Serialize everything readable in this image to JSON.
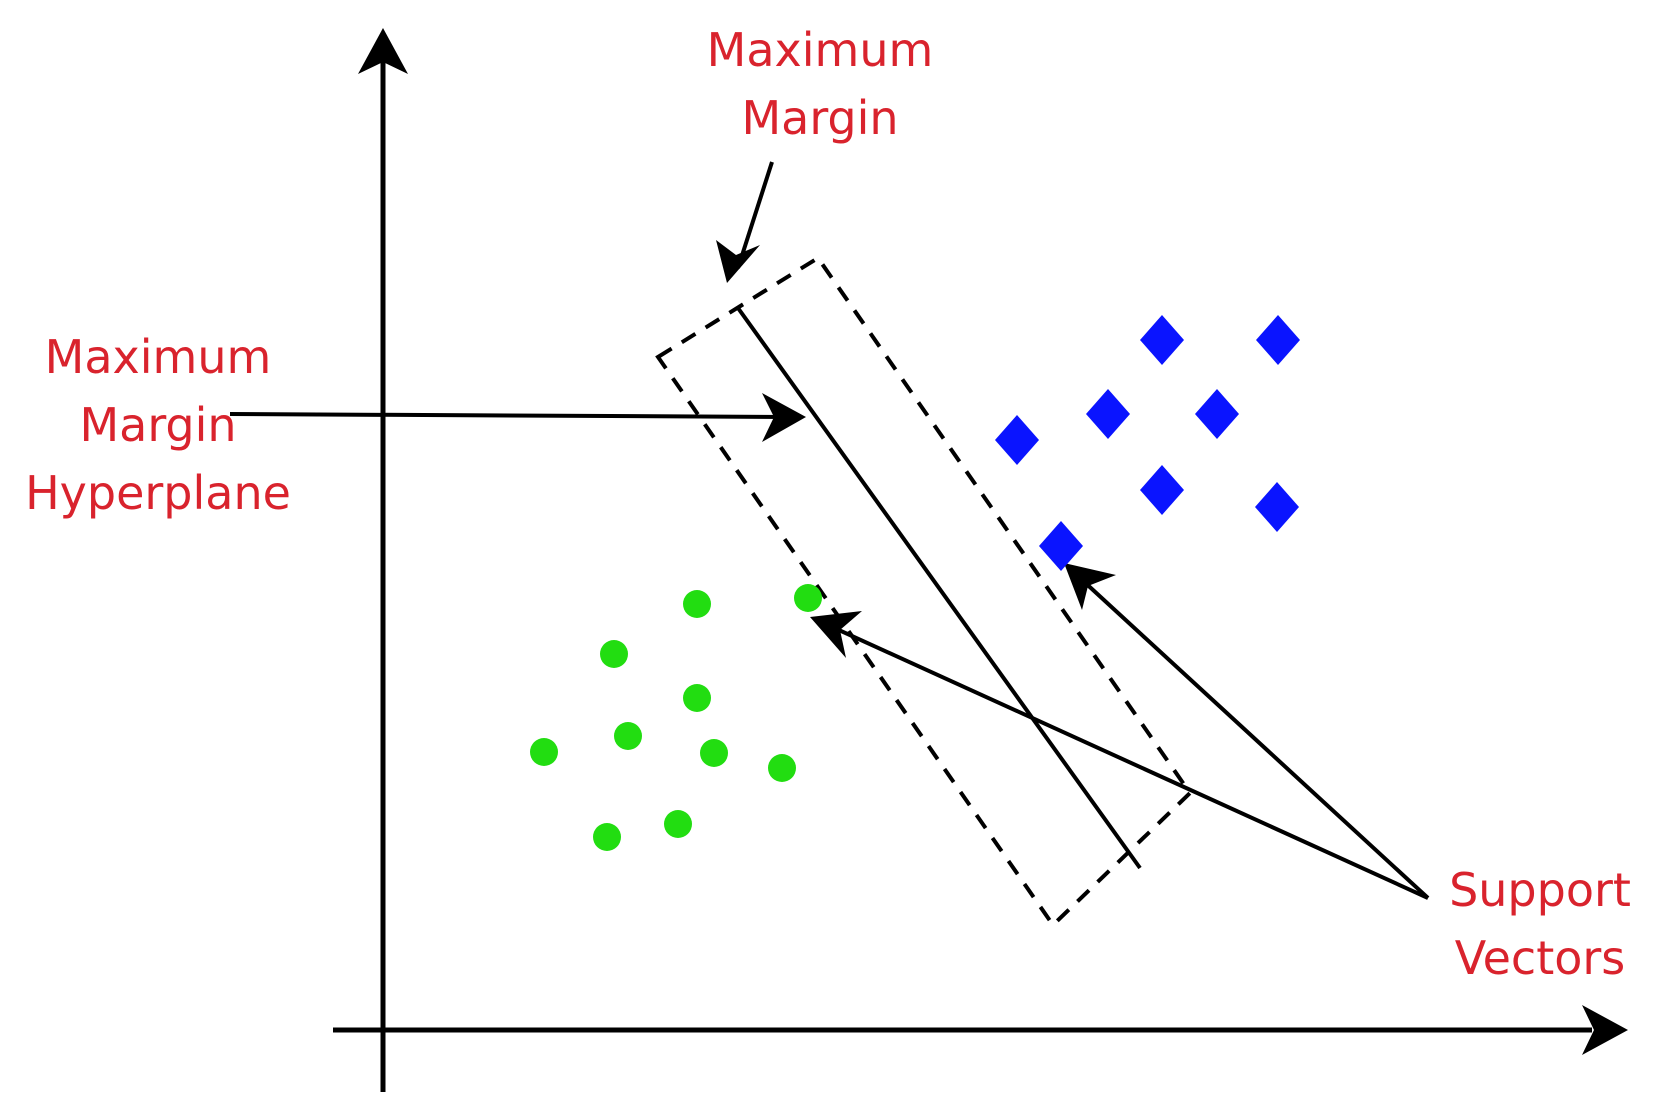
{
  "labels": {
    "top": {
      "line1": "Maximum",
      "line2": "Margin"
    },
    "left": {
      "line1": "Maximum",
      "line2": "Margin",
      "line3": "Hyperplane"
    },
    "right": {
      "line1": "Support",
      "line2": "Vectors"
    }
  },
  "colors": {
    "label_red": "#d9232d",
    "line_black": "#000000",
    "green_class": "#22dd11",
    "blue_class": "#0a14ff"
  },
  "classes": [
    {
      "shape": "circle",
      "color": "green"
    },
    {
      "shape": "diamond",
      "color": "blue"
    }
  ]
}
